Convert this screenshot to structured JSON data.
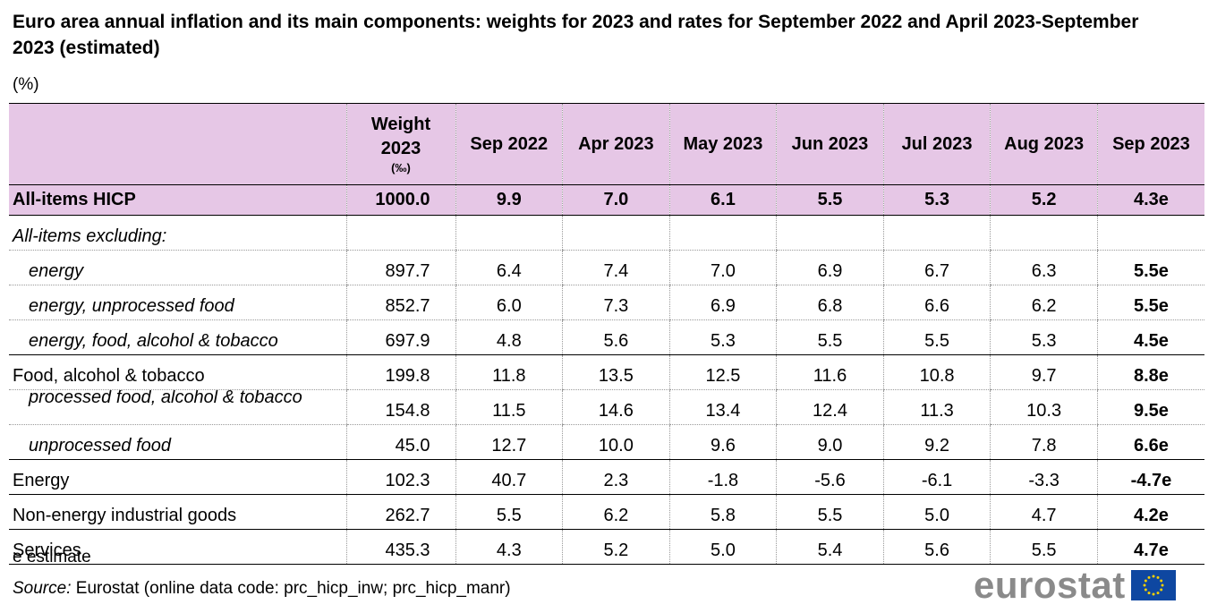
{
  "title": "Euro area annual inflation and its main components: weights for 2023 and rates for September 2022 and April 2023-September 2023 (estimated)",
  "unit": "(%)",
  "header": {
    "weight_line1": "Weight",
    "weight_line2": "2023",
    "weight_unit": "(‰)",
    "columns": [
      "Sep 2022",
      "Apr 2023",
      "May 2023",
      "Jun 2023",
      "Jul 2023",
      "Aug 2023",
      "Sep 2023"
    ]
  },
  "rows": [
    {
      "label": "All-items HICP",
      "weight": "1000.0",
      "values": [
        "9.9",
        "7.0",
        "6.1",
        "5.5",
        "5.3",
        "5.2",
        "4.3e"
      ]
    },
    {
      "label": "All-items excluding:"
    },
    {
      "label": "energy",
      "weight": "897.7",
      "values": [
        "6.4",
        "7.4",
        "7.0",
        "6.9",
        "6.7",
        "6.3",
        "5.5e"
      ]
    },
    {
      "label": "energy, unprocessed food",
      "weight": "852.7",
      "values": [
        "6.0",
        "7.3",
        "6.9",
        "6.8",
        "6.6",
        "6.2",
        "5.5e"
      ]
    },
    {
      "label": "energy, food, alcohol & tobacco",
      "weight": "697.9",
      "values": [
        "4.8",
        "5.6",
        "5.3",
        "5.5",
        "5.5",
        "5.3",
        "4.5e"
      ]
    },
    {
      "label": "Food, alcohol & tobacco",
      "weight": "199.8",
      "values": [
        "11.8",
        "13.5",
        "12.5",
        "11.6",
        "10.8",
        "9.7",
        "8.8e"
      ]
    },
    {
      "label": "processed food, alcohol & tobacco",
      "weight": "154.8",
      "values": [
        "11.5",
        "14.6",
        "13.4",
        "12.4",
        "11.3",
        "10.3",
        "9.5e"
      ]
    },
    {
      "label": "unprocessed food",
      "weight": "45.0",
      "values": [
        "12.7",
        "10.0",
        "9.6",
        "9.0",
        "9.2",
        "7.8",
        "6.6e"
      ]
    },
    {
      "label": "Energy",
      "weight": "102.3",
      "values": [
        "40.7",
        "2.3",
        "-1.8",
        "-5.6",
        "-6.1",
        "-3.3",
        "-4.7e"
      ]
    },
    {
      "label": "Non-energy industrial goods",
      "weight": "262.7",
      "values": [
        "5.5",
        "6.2",
        "5.8",
        "5.5",
        "5.0",
        "4.7",
        "4.2e"
      ]
    },
    {
      "label": "Services",
      "weight": "435.3",
      "values": [
        "4.3",
        "5.2",
        "5.0",
        "5.4",
        "5.6",
        "5.5",
        "4.7e"
      ]
    }
  ],
  "footnote": "e estimate",
  "source": {
    "label": "Source:",
    "text": "Eurostat (online data code: prc_hicp_inw; prc_hicp_manr)"
  },
  "logo": {
    "text": "eurostat",
    "flag_color": "#0e47a1",
    "star_color": "#f5d000"
  }
}
